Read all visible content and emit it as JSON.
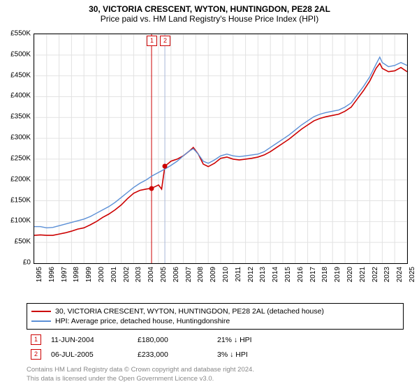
{
  "title": "30, VICTORIA CRESCENT, WYTON, HUNTINGDON, PE28 2AL",
  "subtitle": "Price paid vs. HM Land Registry's House Price Index (HPI)",
  "chart": {
    "type": "line",
    "background_color": "#ffffff",
    "grid_color": "#e2e2e2",
    "border_color": "#000000",
    "x_start_year": 1995,
    "x_end_year": 2025,
    "x_tick_years": [
      1995,
      1996,
      1997,
      1998,
      1999,
      2000,
      2001,
      2002,
      2003,
      2004,
      2005,
      2006,
      2007,
      2008,
      2009,
      2010,
      2011,
      2012,
      2013,
      2014,
      2015,
      2016,
      2017,
      2018,
      2019,
      2020,
      2021,
      2022,
      2023,
      2024,
      2025
    ],
    "y_min": 0,
    "y_max": 550000,
    "y_tick_step": 50000,
    "y_tick_labels": [
      "£0",
      "£50K",
      "£100K",
      "£150K",
      "£200K",
      "£250K",
      "£300K",
      "£350K",
      "£400K",
      "£450K",
      "£500K",
      "£550K"
    ],
    "series": [
      {
        "name": "30, VICTORIA CRESCENT, WYTON, HUNTINGDON, PE28 2AL (detached house)",
        "color": "#cc0000",
        "line_width": 1.6,
        "data": [
          [
            1995.0,
            67000
          ],
          [
            1995.5,
            68000
          ],
          [
            1996.0,
            67000
          ],
          [
            1996.5,
            67000
          ],
          [
            1997.0,
            70000
          ],
          [
            1997.5,
            73000
          ],
          [
            1998.0,
            77000
          ],
          [
            1998.5,
            82000
          ],
          [
            1999.0,
            85000
          ],
          [
            1999.5,
            92000
          ],
          [
            2000.0,
            100000
          ],
          [
            2000.5,
            110000
          ],
          [
            2001.0,
            118000
          ],
          [
            2001.5,
            128000
          ],
          [
            2002.0,
            140000
          ],
          [
            2002.5,
            155000
          ],
          [
            2003.0,
            168000
          ],
          [
            2003.5,
            175000
          ],
          [
            2004.0,
            178000
          ],
          [
            2004.44,
            180000
          ],
          [
            2004.8,
            185000
          ],
          [
            2005.0,
            188000
          ],
          [
            2005.25,
            178000
          ],
          [
            2005.51,
            233000
          ],
          [
            2005.8,
            240000
          ],
          [
            2006.0,
            245000
          ],
          [
            2006.5,
            250000
          ],
          [
            2007.0,
            258000
          ],
          [
            2007.5,
            270000
          ],
          [
            2007.8,
            278000
          ],
          [
            2008.2,
            262000
          ],
          [
            2008.6,
            238000
          ],
          [
            2009.0,
            232000
          ],
          [
            2009.5,
            240000
          ],
          [
            2010.0,
            252000
          ],
          [
            2010.5,
            255000
          ],
          [
            2011.0,
            250000
          ],
          [
            2011.5,
            248000
          ],
          [
            2012.0,
            250000
          ],
          [
            2012.5,
            252000
          ],
          [
            2013.0,
            255000
          ],
          [
            2013.5,
            260000
          ],
          [
            2014.0,
            268000
          ],
          [
            2014.5,
            278000
          ],
          [
            2015.0,
            288000
          ],
          [
            2015.5,
            298000
          ],
          [
            2016.0,
            310000
          ],
          [
            2016.5,
            322000
          ],
          [
            2017.0,
            332000
          ],
          [
            2017.5,
            342000
          ],
          [
            2018.0,
            348000
          ],
          [
            2018.5,
            352000
          ],
          [
            2019.0,
            355000
          ],
          [
            2019.5,
            358000
          ],
          [
            2020.0,
            365000
          ],
          [
            2020.5,
            375000
          ],
          [
            2021.0,
            395000
          ],
          [
            2021.5,
            415000
          ],
          [
            2022.0,
            438000
          ],
          [
            2022.5,
            468000
          ],
          [
            2022.8,
            480000
          ],
          [
            2023.0,
            468000
          ],
          [
            2023.5,
            460000
          ],
          [
            2024.0,
            462000
          ],
          [
            2024.5,
            470000
          ],
          [
            2025.0,
            460000
          ]
        ]
      },
      {
        "name": "HPI: Average price, detached house, Huntingdonshire",
        "color": "#5b8fd6",
        "line_width": 1.4,
        "data": [
          [
            1995.0,
            88000
          ],
          [
            1995.5,
            88000
          ],
          [
            1996.0,
            85000
          ],
          [
            1996.5,
            86000
          ],
          [
            1997.0,
            90000
          ],
          [
            1997.5,
            94000
          ],
          [
            1998.0,
            98000
          ],
          [
            1998.5,
            102000
          ],
          [
            1999.0,
            106000
          ],
          [
            1999.5,
            112000
          ],
          [
            2000.0,
            120000
          ],
          [
            2000.5,
            128000
          ],
          [
            2001.0,
            136000
          ],
          [
            2001.5,
            146000
          ],
          [
            2002.0,
            158000
          ],
          [
            2002.5,
            170000
          ],
          [
            2003.0,
            182000
          ],
          [
            2003.5,
            192000
          ],
          [
            2004.0,
            200000
          ],
          [
            2004.5,
            210000
          ],
          [
            2005.0,
            218000
          ],
          [
            2005.5,
            226000
          ],
          [
            2006.0,
            235000
          ],
          [
            2006.5,
            245000
          ],
          [
            2007.0,
            258000
          ],
          [
            2007.5,
            270000
          ],
          [
            2007.8,
            275000
          ],
          [
            2008.2,
            262000
          ],
          [
            2008.6,
            245000
          ],
          [
            2009.0,
            240000
          ],
          [
            2009.5,
            248000
          ],
          [
            2010.0,
            258000
          ],
          [
            2010.5,
            262000
          ],
          [
            2011.0,
            258000
          ],
          [
            2011.5,
            256000
          ],
          [
            2012.0,
            258000
          ],
          [
            2012.5,
            260000
          ],
          [
            2013.0,
            262000
          ],
          [
            2013.5,
            268000
          ],
          [
            2014.0,
            278000
          ],
          [
            2014.5,
            288000
          ],
          [
            2015.0,
            298000
          ],
          [
            2015.5,
            308000
          ],
          [
            2016.0,
            320000
          ],
          [
            2016.5,
            332000
          ],
          [
            2017.0,
            342000
          ],
          [
            2017.5,
            352000
          ],
          [
            2018.0,
            358000
          ],
          [
            2018.5,
            362000
          ],
          [
            2019.0,
            365000
          ],
          [
            2019.5,
            368000
          ],
          [
            2020.0,
            375000
          ],
          [
            2020.5,
            385000
          ],
          [
            2021.0,
            405000
          ],
          [
            2021.5,
            425000
          ],
          [
            2022.0,
            448000
          ],
          [
            2022.5,
            478000
          ],
          [
            2022.8,
            495000
          ],
          [
            2023.0,
            482000
          ],
          [
            2023.5,
            472000
          ],
          [
            2024.0,
            475000
          ],
          [
            2024.5,
            482000
          ],
          [
            2025.0,
            475000
          ]
        ]
      }
    ],
    "sale_markers": [
      {
        "n": "1",
        "year": 2004.44,
        "price": 180000,
        "line_color": "#cc0000"
      },
      {
        "n": "2",
        "year": 2005.51,
        "price": 233000,
        "line_color": "#a8b8d8"
      }
    ]
  },
  "legend": {
    "items": [
      {
        "color": "#cc0000",
        "label": "30, VICTORIA CRESCENT, WYTON, HUNTINGDON, PE28 2AL (detached house)"
      },
      {
        "color": "#5b8fd6",
        "label": "HPI: Average price, detached house, Huntingdonshire"
      }
    ]
  },
  "sales": [
    {
      "n": "1",
      "date": "11-JUN-2004",
      "price": "£180,000",
      "pct": "21% ↓ HPI"
    },
    {
      "n": "2",
      "date": "06-JUL-2005",
      "price": "£233,000",
      "pct": "3% ↓ HPI"
    }
  ],
  "footer_line1": "Contains HM Land Registry data © Crown copyright and database right 2024.",
  "footer_line2": "This data is licensed under the Open Government Licence v3.0."
}
